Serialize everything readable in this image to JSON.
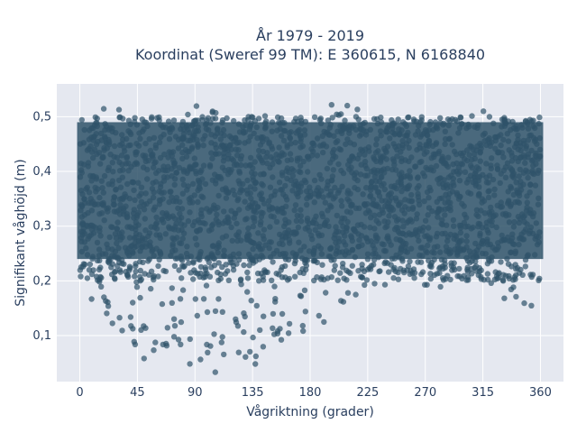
{
  "chart_data": {
    "type": "scatter",
    "title_line1": "År 1979 - 2019",
    "title_line2": "Koordinat (Sweref 99 TM): E 360615, N 6168840",
    "xlabel": "Vågriktning (grader)",
    "ylabel": "Signifikant våghöjd (m)",
    "xlim": [
      -18,
      378
    ],
    "ylim": [
      0.016,
      0.56
    ],
    "x_ticks": [
      0,
      45,
      90,
      135,
      180,
      225,
      270,
      315,
      360
    ],
    "x_tick_labels": [
      "0",
      "45",
      "90",
      "135",
      "180",
      "225",
      "270",
      "315",
      "360"
    ],
    "y_ticks": [
      0.1,
      0.2,
      0.3,
      0.4,
      0.5
    ],
    "y_tick_labels": [
      "0,1",
      "0,2",
      "0,3",
      "0,4",
      "0,5"
    ],
    "grid": true,
    "marker_color": "#2f5269",
    "plot_background": "#e5e8f0",
    "approx_envelope": [
      {
        "x": 0,
        "y_min": 0.17,
        "y_max": 0.5
      },
      {
        "x": 20,
        "y_min": 0.14,
        "y_max": 0.53
      },
      {
        "x": 45,
        "y_min": 0.04,
        "y_max": 0.5
      },
      {
        "x": 60,
        "y_min": 0.03,
        "y_max": 0.5
      },
      {
        "x": 90,
        "y_min": 0.03,
        "y_max": 0.52
      },
      {
        "x": 120,
        "y_min": 0.03,
        "y_max": 0.51
      },
      {
        "x": 135,
        "y_min": 0.04,
        "y_max": 0.5
      },
      {
        "x": 150,
        "y_min": 0.08,
        "y_max": 0.53
      },
      {
        "x": 180,
        "y_min": 0.1,
        "y_max": 0.5
      },
      {
        "x": 205,
        "y_min": 0.15,
        "y_max": 0.54
      },
      {
        "x": 225,
        "y_min": 0.18,
        "y_max": 0.5
      },
      {
        "x": 270,
        "y_min": 0.18,
        "y_max": 0.5
      },
      {
        "x": 300,
        "y_min": 0.2,
        "y_max": 0.5
      },
      {
        "x": 315,
        "y_min": 0.18,
        "y_max": 0.52
      },
      {
        "x": 340,
        "y_min": 0.16,
        "y_max": 0.5
      },
      {
        "x": 360,
        "y_min": 0.13,
        "y_max": 0.5
      }
    ]
  }
}
